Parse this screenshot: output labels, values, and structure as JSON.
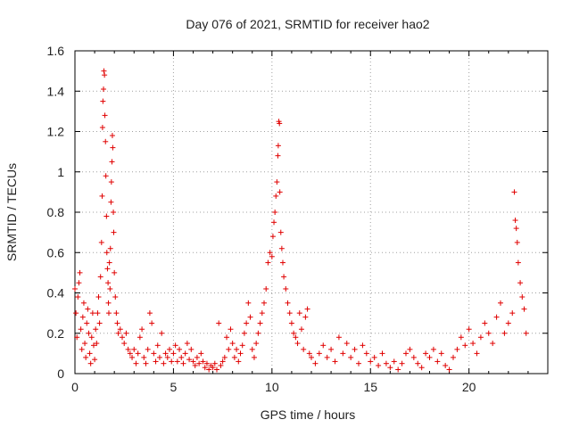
{
  "chart_data": {
    "type": "scatter",
    "title": "Day 076 of 2021, SRMTID for receiver hao2",
    "xlabel": "GPS time / hours",
    "ylabel": "SRMTID / TECUs",
    "xlim": [
      0,
      24
    ],
    "ylim": [
      0,
      1.6
    ],
    "x_ticks": [
      0,
      5,
      10,
      15,
      20
    ],
    "x_tick_labels": [
      "0",
      "5",
      "10",
      "15",
      "20"
    ],
    "y_ticks": [
      0,
      0.2,
      0.4,
      0.6,
      0.8,
      1,
      1.2,
      1.4,
      1.6
    ],
    "y_tick_labels": [
      "0",
      "0.2",
      "0.4",
      "0.6",
      "0.8",
      "1",
      "1.2",
      "1.4",
      "1.6"
    ],
    "grid": true,
    "marker": "+",
    "marker_color": "#e00000",
    "series": [
      {
        "name": "SRMTID",
        "points": [
          [
            0.0,
            0.42
          ],
          [
            0.05,
            0.3
          ],
          [
            0.1,
            0.18
          ],
          [
            0.15,
            0.38
          ],
          [
            0.2,
            0.45
          ],
          [
            0.25,
            0.5
          ],
          [
            0.3,
            0.22
          ],
          [
            0.35,
            0.12
          ],
          [
            0.4,
            0.28
          ],
          [
            0.45,
            0.35
          ],
          [
            0.5,
            0.15
          ],
          [
            0.55,
            0.08
          ],
          [
            0.6,
            0.25
          ],
          [
            0.65,
            0.32
          ],
          [
            0.7,
            0.2
          ],
          [
            0.75,
            0.1
          ],
          [
            0.8,
            0.05
          ],
          [
            0.85,
            0.18
          ],
          [
            0.9,
            0.3
          ],
          [
            0.95,
            0.14
          ],
          [
            1.0,
            0.07
          ],
          [
            1.05,
            0.22
          ],
          [
            1.1,
            0.15
          ],
          [
            1.15,
            0.3
          ],
          [
            1.2,
            0.38
          ],
          [
            1.25,
            0.25
          ],
          [
            1.3,
            0.48
          ],
          [
            1.35,
            0.65
          ],
          [
            1.38,
            0.88
          ],
          [
            1.4,
            1.22
          ],
          [
            1.42,
            1.35
          ],
          [
            1.45,
            1.41
          ],
          [
            1.47,
            1.5
          ],
          [
            1.5,
            1.48
          ],
          [
            1.52,
            1.28
          ],
          [
            1.55,
            1.15
          ],
          [
            1.57,
            0.98
          ],
          [
            1.6,
            0.78
          ],
          [
            1.62,
            0.6
          ],
          [
            1.65,
            0.52
          ],
          [
            1.68,
            0.45
          ],
          [
            1.7,
            0.35
          ],
          [
            1.72,
            0.3
          ],
          [
            1.75,
            0.55
          ],
          [
            1.78,
            0.42
          ],
          [
            1.8,
            0.62
          ],
          [
            1.83,
            0.85
          ],
          [
            1.85,
            0.95
          ],
          [
            1.88,
            1.05
          ],
          [
            1.9,
            1.18
          ],
          [
            1.92,
            1.12
          ],
          [
            1.95,
            0.8
          ],
          [
            1.97,
            0.7
          ],
          [
            2.0,
            0.5
          ],
          [
            2.05,
            0.38
          ],
          [
            2.1,
            0.3
          ],
          [
            2.15,
            0.25
          ],
          [
            2.2,
            0.2
          ],
          [
            2.3,
            0.22
          ],
          [
            2.4,
            0.18
          ],
          [
            2.5,
            0.15
          ],
          [
            2.6,
            0.2
          ],
          [
            2.7,
            0.12
          ],
          [
            2.8,
            0.1
          ],
          [
            2.9,
            0.08
          ],
          [
            3.0,
            0.12
          ],
          [
            3.1,
            0.05
          ],
          [
            3.2,
            0.1
          ],
          [
            3.3,
            0.18
          ],
          [
            3.4,
            0.22
          ],
          [
            3.5,
            0.08
          ],
          [
            3.6,
            0.05
          ],
          [
            3.7,
            0.12
          ],
          [
            3.8,
            0.3
          ],
          [
            3.9,
            0.25
          ],
          [
            4.0,
            0.1
          ],
          [
            4.1,
            0.06
          ],
          [
            4.2,
            0.14
          ],
          [
            4.3,
            0.08
          ],
          [
            4.4,
            0.2
          ],
          [
            4.5,
            0.05
          ],
          [
            4.6,
            0.1
          ],
          [
            4.7,
            0.08
          ],
          [
            4.8,
            0.12
          ],
          [
            4.9,
            0.06
          ],
          [
            5.0,
            0.1
          ],
          [
            5.1,
            0.14
          ],
          [
            5.2,
            0.06
          ],
          [
            5.3,
            0.12
          ],
          [
            5.4,
            0.08
          ],
          [
            5.5,
            0.05
          ],
          [
            5.6,
            0.1
          ],
          [
            5.7,
            0.15
          ],
          [
            5.8,
            0.07
          ],
          [
            5.9,
            0.12
          ],
          [
            6.0,
            0.06
          ],
          [
            6.1,
            0.04
          ],
          [
            6.2,
            0.08
          ],
          [
            6.3,
            0.05
          ],
          [
            6.4,
            0.1
          ],
          [
            6.5,
            0.06
          ],
          [
            6.6,
            0.03
          ],
          [
            6.7,
            0.05
          ],
          [
            6.8,
            0.02
          ],
          [
            6.9,
            0.04
          ],
          [
            7.0,
            0.03
          ],
          [
            7.1,
            0.05
          ],
          [
            7.2,
            0.02
          ],
          [
            7.3,
            0.25
          ],
          [
            7.4,
            0.04
          ],
          [
            7.5,
            0.06
          ],
          [
            7.6,
            0.08
          ],
          [
            7.7,
            0.18
          ],
          [
            7.8,
            0.12
          ],
          [
            7.9,
            0.22
          ],
          [
            8.0,
            0.15
          ],
          [
            8.1,
            0.08
          ],
          [
            8.2,
            0.12
          ],
          [
            8.3,
            0.06
          ],
          [
            8.4,
            0.1
          ],
          [
            8.5,
            0.14
          ],
          [
            8.6,
            0.2
          ],
          [
            8.7,
            0.25
          ],
          [
            8.8,
            0.35
          ],
          [
            8.9,
            0.28
          ],
          [
            9.0,
            0.12
          ],
          [
            9.1,
            0.08
          ],
          [
            9.2,
            0.15
          ],
          [
            9.3,
            0.2
          ],
          [
            9.4,
            0.25
          ],
          [
            9.5,
            0.3
          ],
          [
            9.6,
            0.35
          ],
          [
            9.7,
            0.42
          ],
          [
            9.8,
            0.55
          ],
          [
            9.9,
            0.6
          ],
          [
            10.0,
            0.58
          ],
          [
            10.05,
            0.68
          ],
          [
            10.1,
            0.75
          ],
          [
            10.15,
            0.8
          ],
          [
            10.2,
            0.88
          ],
          [
            10.25,
            0.95
          ],
          [
            10.3,
            1.08
          ],
          [
            10.32,
            1.13
          ],
          [
            10.35,
            1.25
          ],
          [
            10.38,
            1.24
          ],
          [
            10.4,
            0.9
          ],
          [
            10.45,
            0.7
          ],
          [
            10.5,
            0.62
          ],
          [
            10.55,
            0.55
          ],
          [
            10.6,
            0.48
          ],
          [
            10.7,
            0.42
          ],
          [
            10.8,
            0.35
          ],
          [
            10.9,
            0.3
          ],
          [
            11.0,
            0.25
          ],
          [
            11.1,
            0.2
          ],
          [
            11.2,
            0.18
          ],
          [
            11.3,
            0.15
          ],
          [
            11.4,
            0.3
          ],
          [
            11.5,
            0.22
          ],
          [
            11.6,
            0.12
          ],
          [
            11.7,
            0.28
          ],
          [
            11.8,
            0.32
          ],
          [
            11.9,
            0.1
          ],
          [
            12.0,
            0.08
          ],
          [
            12.2,
            0.05
          ],
          [
            12.4,
            0.1
          ],
          [
            12.6,
            0.14
          ],
          [
            12.8,
            0.08
          ],
          [
            13.0,
            0.12
          ],
          [
            13.2,
            0.06
          ],
          [
            13.4,
            0.18
          ],
          [
            13.6,
            0.1
          ],
          [
            13.8,
            0.15
          ],
          [
            14.0,
            0.08
          ],
          [
            14.2,
            0.12
          ],
          [
            14.4,
            0.05
          ],
          [
            14.6,
            0.14
          ],
          [
            14.8,
            0.1
          ],
          [
            15.0,
            0.06
          ],
          [
            15.2,
            0.08
          ],
          [
            15.4,
            0.04
          ],
          [
            15.6,
            0.1
          ],
          [
            15.8,
            0.05
          ],
          [
            16.0,
            0.03
          ],
          [
            16.2,
            0.06
          ],
          [
            16.4,
            0.02
          ],
          [
            16.6,
            0.05
          ],
          [
            16.8,
            0.1
          ],
          [
            17.0,
            0.12
          ],
          [
            17.2,
            0.08
          ],
          [
            17.4,
            0.05
          ],
          [
            17.6,
            0.03
          ],
          [
            17.8,
            0.1
          ],
          [
            18.0,
            0.08
          ],
          [
            18.2,
            0.12
          ],
          [
            18.4,
            0.06
          ],
          [
            18.6,
            0.1
          ],
          [
            18.8,
            0.04
          ],
          [
            19.0,
            0.02
          ],
          [
            19.2,
            0.08
          ],
          [
            19.4,
            0.12
          ],
          [
            19.6,
            0.18
          ],
          [
            19.8,
            0.14
          ],
          [
            20.0,
            0.22
          ],
          [
            20.2,
            0.15
          ],
          [
            20.4,
            0.1
          ],
          [
            20.6,
            0.18
          ],
          [
            20.8,
            0.25
          ],
          [
            21.0,
            0.2
          ],
          [
            21.2,
            0.15
          ],
          [
            21.4,
            0.28
          ],
          [
            21.6,
            0.35
          ],
          [
            21.8,
            0.2
          ],
          [
            22.0,
            0.25
          ],
          [
            22.2,
            0.3
          ],
          [
            22.3,
            0.9
          ],
          [
            22.35,
            0.76
          ],
          [
            22.4,
            0.72
          ],
          [
            22.45,
            0.65
          ],
          [
            22.5,
            0.55
          ],
          [
            22.6,
            0.45
          ],
          [
            22.7,
            0.38
          ],
          [
            22.8,
            0.32
          ],
          [
            22.9,
            0.2
          ]
        ]
      }
    ]
  }
}
